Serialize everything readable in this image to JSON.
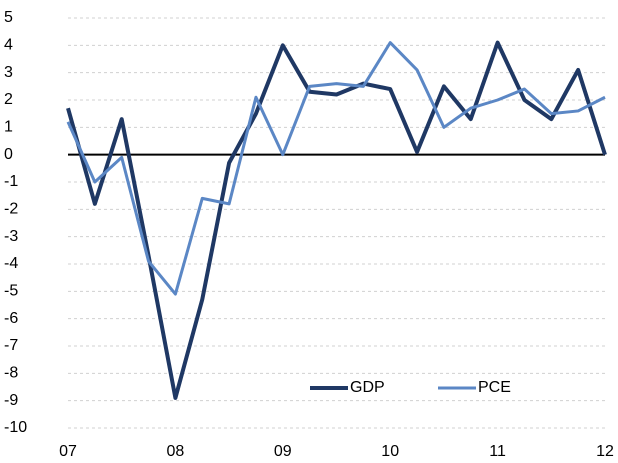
{
  "chart_data": {
    "type": "line",
    "categories": [
      "07",
      null,
      null,
      null,
      "08",
      null,
      null,
      null,
      "09",
      null,
      null,
      null,
      "10",
      null,
      null,
      null,
      "11",
      null,
      null,
      null,
      "12"
    ],
    "series": [
      {
        "name": "GDP",
        "color": "#1f3864",
        "values": [
          1.7,
          -1.8,
          1.3,
          -3.7,
          -8.9,
          -5.3,
          -0.3,
          1.5,
          4.0,
          2.3,
          2.2,
          2.6,
          2.4,
          0.1,
          2.5,
          1.3,
          4.1,
          2.0,
          1.3,
          3.1,
          0.0
        ]
      },
      {
        "name": "PCE",
        "color": "#5b87c5",
        "values": [
          1.2,
          -1.0,
          -0.1,
          -3.9,
          -5.1,
          -1.6,
          -1.8,
          2.1,
          0.0,
          2.5,
          2.6,
          2.5,
          4.1,
          3.1,
          1.0,
          1.7,
          2.0,
          2.4,
          1.5,
          1.6,
          2.1
        ]
      }
    ],
    "ylim": [
      -10,
      5
    ],
    "yticks": [
      -10,
      -9,
      -8,
      -7,
      -6,
      -5,
      -4,
      -3,
      -2,
      -1,
      0,
      1,
      2,
      3,
      4,
      5
    ],
    "grid": true,
    "legend": "lower center"
  }
}
